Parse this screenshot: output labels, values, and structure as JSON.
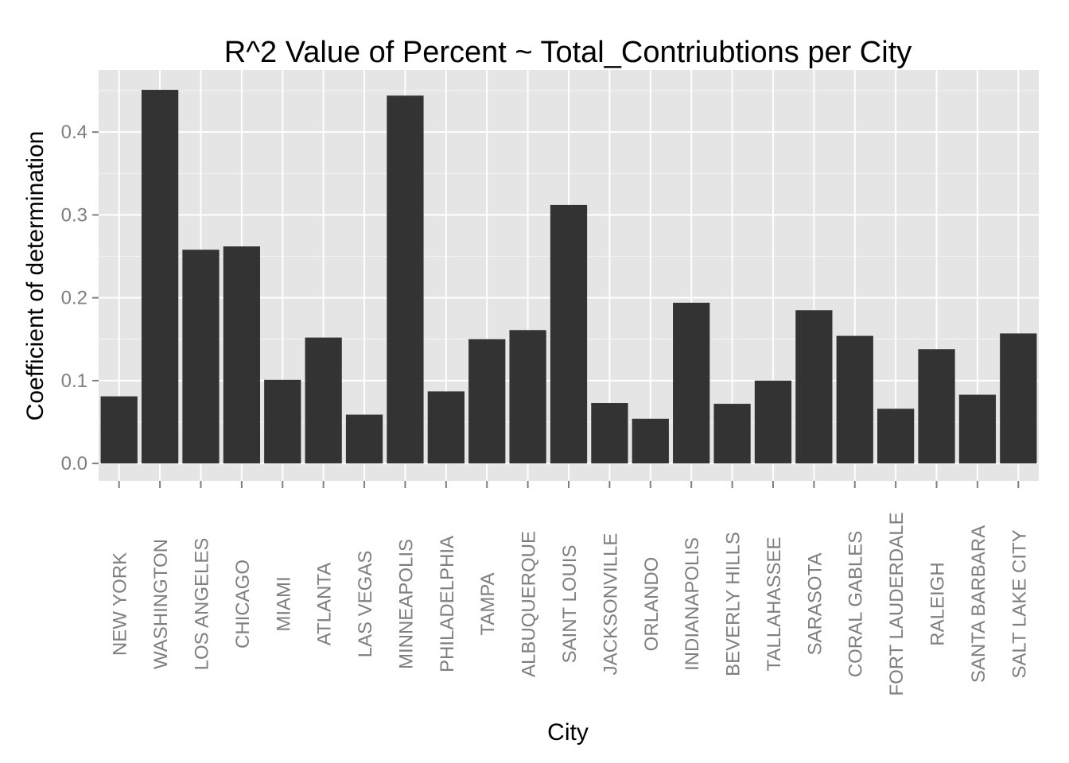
{
  "chart_data": {
    "type": "bar",
    "title": "R^2 Value of Percent ~ Total_Contriubtions per City",
    "xlabel": "City",
    "ylabel": "Coefficient of determination",
    "ylim": [
      -0.021,
      0.475
    ],
    "yticks": [
      0.0,
      0.1,
      0.2,
      0.3,
      0.4
    ],
    "ytick_labels": [
      "0.0",
      "0.1",
      "0.2",
      "0.3",
      "0.4"
    ],
    "grid": true,
    "legend": "none",
    "colors": {
      "panel": "#e5e5e5",
      "grid_major": "#ffffff",
      "grid_minor": "#f2f2f2",
      "bar": "#333333",
      "tick_text": "#7f7f7f",
      "tick_mark": "#7f7f7f"
    },
    "categories": [
      "NEW YORK",
      "WASHINGTON",
      "LOS ANGELES",
      "CHICAGO",
      "MIAMI",
      "ATLANTA",
      "LAS VEGAS",
      "MINNEAPOLIS",
      "PHILADELPHIA",
      "TAMPA",
      "ALBUQUERQUE",
      "SAINT LOUIS",
      "JACKSONVILLE",
      "ORLANDO",
      "INDIANAPOLIS",
      "BEVERLY HILLS",
      "TALLAHASSEE",
      "SARASOTA",
      "CORAL GABLES",
      "FORT LAUDERDALE",
      "RALEIGH",
      "SANTA BARBARA",
      "SALT LAKE CITY"
    ],
    "values": [
      0.081,
      0.451,
      0.258,
      0.262,
      0.101,
      0.152,
      0.059,
      0.444,
      0.087,
      0.15,
      0.161,
      0.312,
      0.073,
      0.054,
      0.194,
      0.072,
      0.1,
      0.185,
      0.154,
      0.066,
      0.138,
      0.083,
      0.157
    ]
  }
}
